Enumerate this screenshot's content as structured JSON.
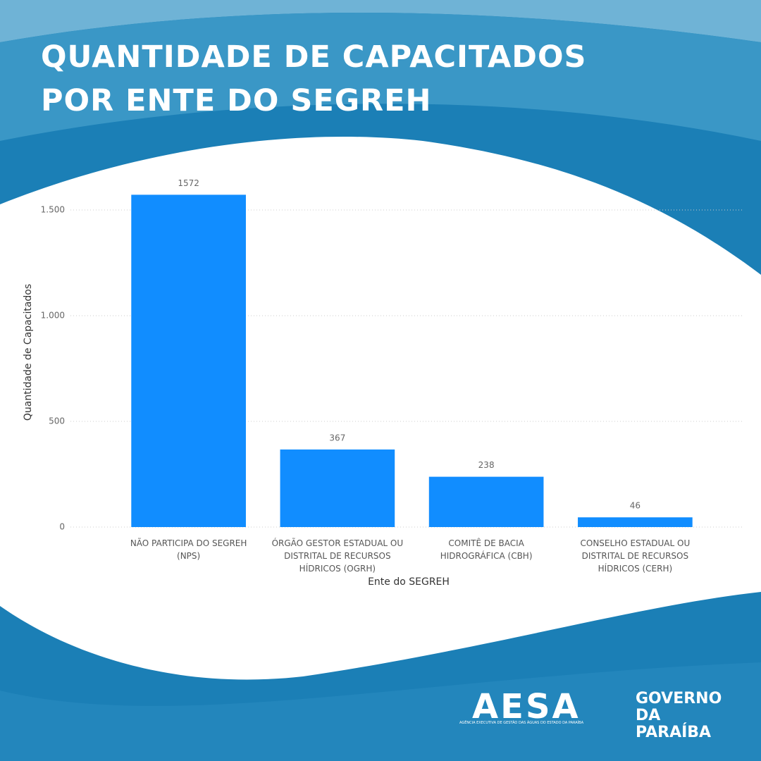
{
  "chart_data": {
    "type": "bar",
    "title": "QUANTIDADE DE CAPACITADOS POR ENTE DO SEGREH",
    "x_label": "Ente do SEGREH",
    "y_label": "Quantidade de Capacitados",
    "categories": [
      "NÃO PARTICIPA DO SEGREH (NPS)",
      "ÓRGÃO GESTOR ESTADUAL OU DISTRITAL DE RECURSOS HÍDRICOS (OGRH)",
      "COMITÊ DE BACIA HIDROGRÁFICA (CBH)",
      "CONSELHO ESTADUAL OU DISTRITAL DE RECURSOS HÍDRICOS (CERH)"
    ],
    "values": [
      1572,
      367,
      238,
      46
    ],
    "color": "#118dff",
    "ylim": [
      0,
      1650
    ],
    "yticks": [
      0,
      500,
      {
        "value": 1000,
        "label": "1.000"
      },
      {
        "value": 1500,
        "label": "1.500"
      }
    ],
    "grid": true
  },
  "logos": {
    "aesa": "AESA",
    "aesa_subtitle": "AGÊNCIA EXECUTIVA DE GESTÃO DAS ÁGUAS DO ESTADO DA PARAÍBA",
    "governo": "GOVERNO DA PARAÍBA"
  }
}
